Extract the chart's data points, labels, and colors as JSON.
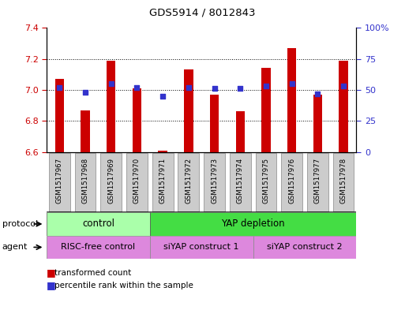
{
  "title": "GDS5914 / 8012843",
  "samples": [
    "GSM1517967",
    "GSM1517968",
    "GSM1517969",
    "GSM1517970",
    "GSM1517971",
    "GSM1517972",
    "GSM1517973",
    "GSM1517974",
    "GSM1517975",
    "GSM1517976",
    "GSM1517977",
    "GSM1517978"
  ],
  "transformed_counts": [
    7.07,
    6.87,
    7.19,
    7.01,
    6.61,
    7.13,
    6.97,
    6.86,
    7.14,
    7.27,
    6.97,
    7.19
  ],
  "percentile_ranks": [
    52,
    48,
    55,
    52,
    45,
    52,
    51,
    51,
    53,
    55,
    47,
    53
  ],
  "ylim_left": [
    6.6,
    7.4
  ],
  "ylim_right": [
    0,
    100
  ],
  "yticks_left": [
    6.6,
    6.8,
    7.0,
    7.2,
    7.4
  ],
  "yticks_right": [
    0,
    25,
    50,
    75,
    100
  ],
  "bar_color": "#cc0000",
  "dot_color": "#3333cc",
  "bar_bottom": 6.6,
  "protocol_labels": [
    "control",
    "YAP depletion"
  ],
  "protocol_color_control": "#aaffaa",
  "protocol_color_yap": "#44dd44",
  "agent_color": "#dd88dd",
  "agent_labels": [
    "RISC-free control",
    "siYAP construct 1",
    "siYAP construct 2"
  ],
  "legend_items": [
    "transformed count",
    "percentile rank within the sample"
  ],
  "legend_colors": [
    "#cc0000",
    "#3333cc"
  ],
  "background_color": "#ffffff",
  "tick_label_color_left": "#cc0000",
  "tick_label_color_right": "#3333cc",
  "tickbox_color": "#cccccc",
  "plot_bg": "#ffffff"
}
